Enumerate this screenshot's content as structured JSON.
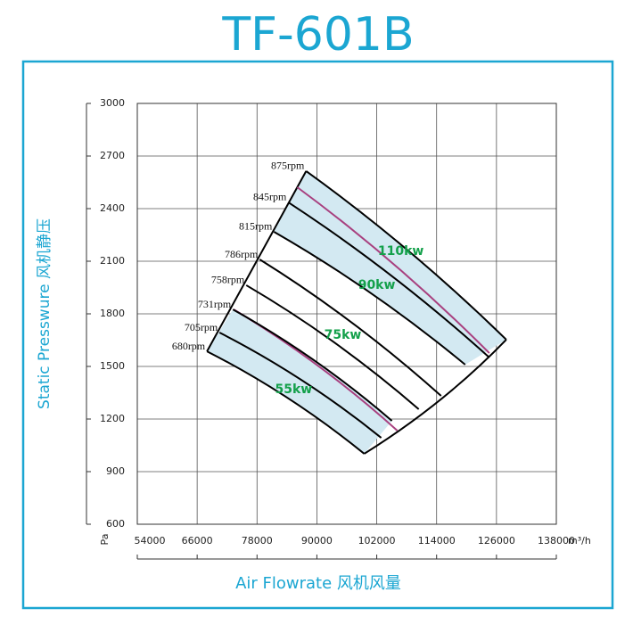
{
  "chart_data": {
    "type": "fan-curve",
    "title": "TF-601B",
    "y_label": "Static Presswure  风机静压",
    "x_label": "Air Flowrate  风机风量",
    "y_unit": "Pa",
    "x_unit": "m³/h",
    "xlim": [
      54000,
      138000
    ],
    "xticks": [
      54000,
      66000,
      78000,
      90000,
      102000,
      114000,
      126000,
      138000
    ],
    "ylim": [
      600,
      3000
    ],
    "yticks": [
      600,
      900,
      1200,
      1500,
      1800,
      2100,
      2400,
      2700,
      3000
    ],
    "grid": true,
    "series": [
      {
        "name": "680rpm",
        "color": "#000000",
        "x": [
          67970,
          99490
        ],
        "values": [
          1586,
          1002
        ]
      },
      {
        "name": "705rpm",
        "color": "#000000",
        "x": [
          70480,
          102900
        ],
        "values": [
          1693,
          1093
        ]
      },
      {
        "name": "731rpm",
        "color": "#000000",
        "x": [
          73170,
          105040
        ],
        "values": [
          1825,
          1190
        ]
      },
      {
        "name": "758rpm",
        "color": "#000000",
        "x": [
          75850,
          110420
        ],
        "values": [
          1963,
          1256
        ]
      },
      {
        "name": "786rpm",
        "color": "#000000",
        "x": [
          78540,
          114900
        ],
        "values": [
          2110,
          1332
        ]
      },
      {
        "name": "815rpm",
        "color": "#000000",
        "x": [
          81400,
          119730
        ],
        "values": [
          2268,
          1510
        ]
      },
      {
        "name": "845rpm",
        "color": "#000000",
        "x": [
          84270,
          124570
        ],
        "values": [
          2436,
          1551
        ]
      },
      {
        "name": "875rpm",
        "color": "#000000",
        "x": [
          87850,
          127970
        ],
        "values": [
          2614,
          1653
        ]
      }
    ],
    "limit_lines": [
      {
        "color": "#a8407f",
        "x": [
          73340,
          106120
        ],
        "values": [
          1825,
          1134
        ]
      },
      {
        "color": "#a8407f",
        "x": [
          86060,
          124570
        ],
        "values": [
          2522,
          1576
        ]
      }
    ],
    "band_color": "#d3e9f2",
    "power_labels": [
      {
        "text": "110kw",
        "x": 106830,
        "y": 2156
      },
      {
        "text": "90kw",
        "x": 102000,
        "y": 1963
      },
      {
        "text": "75kw",
        "x": 95190,
        "y": 1678
      },
      {
        "text": "55kw",
        "x": 85340,
        "y": 1368
      }
    ]
  }
}
